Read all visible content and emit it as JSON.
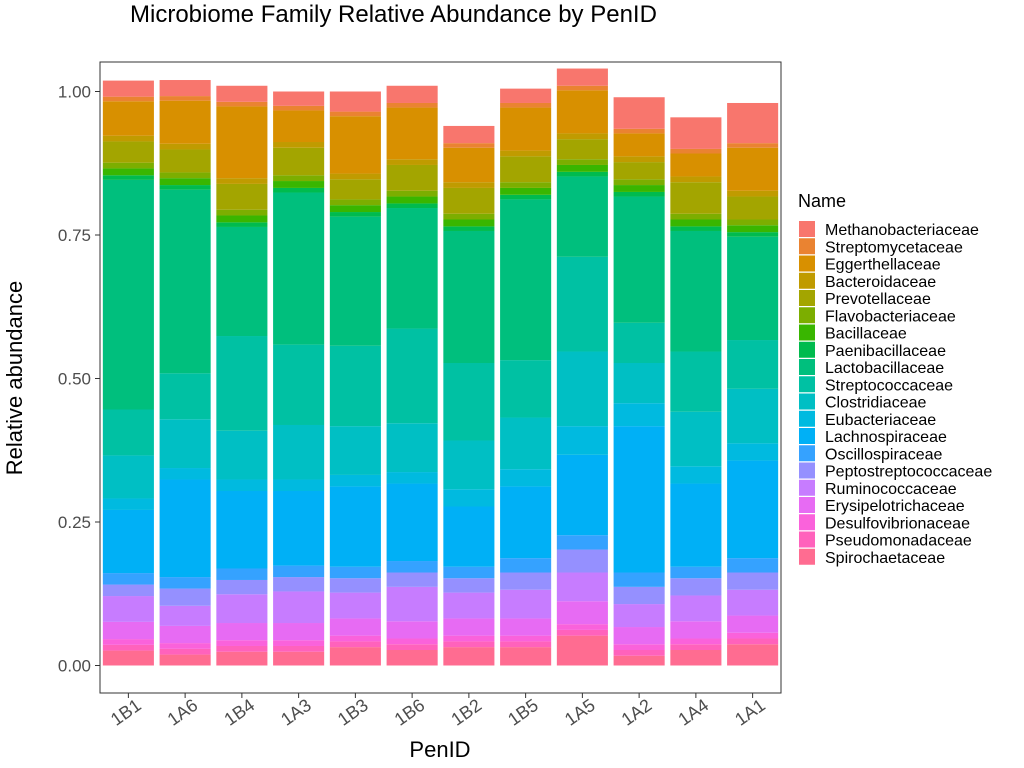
{
  "chart_data": {
    "type": "bar",
    "stacked": true,
    "normalized": true,
    "title": "Microbiome Family Relative Abundance by PenID",
    "xlabel": "PenID",
    "ylabel": "Relative abundance",
    "ylim": [
      0,
      1
    ],
    "yticks": [
      "0.00",
      "0.25",
      "0.50",
      "0.75",
      "1.00"
    ],
    "grid": false,
    "legend_position": "right",
    "legend_title": "Name",
    "categories": [
      "1B1",
      "1A6",
      "1B4",
      "1A3",
      "1B3",
      "1B6",
      "1B2",
      "1B5",
      "1A5",
      "1A2",
      "1A4",
      "1A1"
    ],
    "series": [
      {
        "name": "Methanobacteriaceae",
        "color": "#F8766D",
        "values": [
          0.028,
          0.028,
          0.028,
          0.025,
          0.035,
          0.03,
          0.03,
          0.025,
          0.03,
          0.055,
          0.055,
          0.07
        ]
      },
      {
        "name": "Streptomycetaceae",
        "color": "#EA8331",
        "values": [
          0.008,
          0.008,
          0.008,
          0.008,
          0.008,
          0.008,
          0.008,
          0.008,
          0.008,
          0.008,
          0.008,
          0.008
        ]
      },
      {
        "name": "Eggerthellaceae",
        "color": "#D89000",
        "values": [
          0.06,
          0.075,
          0.125,
          0.055,
          0.1,
          0.09,
          0.06,
          0.075,
          0.075,
          0.04,
          0.04,
          0.075
        ]
      },
      {
        "name": "Bacteroidaceae",
        "color": "#C09B00",
        "values": [
          0.01,
          0.01,
          0.01,
          0.01,
          0.01,
          0.01,
          0.01,
          0.01,
          0.01,
          0.01,
          0.01,
          0.01
        ]
      },
      {
        "name": "Prevotellaceae",
        "color": "#A3A500",
        "values": [
          0.037,
          0.04,
          0.045,
          0.048,
          0.035,
          0.045,
          0.045,
          0.045,
          0.035,
          0.03,
          0.055,
          0.04
        ]
      },
      {
        "name": "Flavobacteriaceae",
        "color": "#7CAE00",
        "values": [
          0.01,
          0.01,
          0.01,
          0.01,
          0.01,
          0.01,
          0.01,
          0.01,
          0.01,
          0.01,
          0.01,
          0.01
        ]
      },
      {
        "name": "Bacillaceae",
        "color": "#39B600",
        "values": [
          0.012,
          0.012,
          0.012,
          0.012,
          0.012,
          0.012,
          0.012,
          0.012,
          0.012,
          0.012,
          0.012,
          0.012
        ]
      },
      {
        "name": "Paenibacillaceae",
        "color": "#00BB4E",
        "values": [
          0.008,
          0.008,
          0.008,
          0.008,
          0.008,
          0.008,
          0.008,
          0.008,
          0.008,
          0.008,
          0.008,
          0.008
        ]
      },
      {
        "name": "Lactobacillaceae",
        "color": "#00BF7D",
        "values": [
          0.4,
          0.32,
          0.19,
          0.265,
          0.225,
          0.21,
          0.23,
          0.28,
          0.14,
          0.22,
          0.21,
          0.18
        ]
      },
      {
        "name": "Streptococcaceae",
        "color": "#00C1A3",
        "values": [
          0.08,
          0.08,
          0.165,
          0.14,
          0.14,
          0.165,
          0.135,
          0.1,
          0.165,
          0.07,
          0.105,
          0.085
        ]
      },
      {
        "name": "Clostridiaceae",
        "color": "#00BFC4",
        "values": [
          0.075,
          0.085,
          0.085,
          0.095,
          0.085,
          0.085,
          0.085,
          0.09,
          0.13,
          0.07,
          0.095,
          0.095
        ]
      },
      {
        "name": "Eubacteriaceae",
        "color": "#00BAE0",
        "values": [
          0.02,
          0.02,
          0.02,
          0.02,
          0.02,
          0.02,
          0.03,
          0.03,
          0.05,
          0.04,
          0.03,
          0.03
        ]
      },
      {
        "name": "Lachnospiraceae",
        "color": "#00B0F6",
        "values": [
          0.11,
          0.17,
          0.135,
          0.13,
          0.14,
          0.135,
          0.105,
          0.125,
          0.14,
          0.255,
          0.145,
          0.17
        ]
      },
      {
        "name": "Oscillospiraceae",
        "color": "#35A2FF",
        "values": [
          0.02,
          0.02,
          0.02,
          0.02,
          0.02,
          0.02,
          0.02,
          0.025,
          0.025,
          0.025,
          0.02,
          0.025
        ]
      },
      {
        "name": "Peptostreptococcaceae",
        "color": "#9590FF",
        "values": [
          0.02,
          0.03,
          0.025,
          0.025,
          0.025,
          0.025,
          0.025,
          0.03,
          0.04,
          0.03,
          0.03,
          0.03
        ]
      },
      {
        "name": "Ruminococcaceae",
        "color": "#C77CFF",
        "values": [
          0.045,
          0.035,
          0.05,
          0.055,
          0.045,
          0.06,
          0.045,
          0.05,
          0.05,
          0.04,
          0.045,
          0.045
        ]
      },
      {
        "name": "Erysipelotrichaceae",
        "color": "#E76BF3",
        "values": [
          0.03,
          0.03,
          0.03,
          0.03,
          0.03,
          0.03,
          0.03,
          0.03,
          0.04,
          0.03,
          0.03,
          0.03
        ]
      },
      {
        "name": "Desulfovibrionaceae",
        "color": "#FA62DB",
        "values": [
          0.01,
          0.01,
          0.01,
          0.01,
          0.01,
          0.01,
          0.01,
          0.01,
          0.01,
          0.01,
          0.01,
          0.01
        ]
      },
      {
        "name": "Pseudomonadaceae",
        "color": "#FF62BC",
        "values": [
          0.01,
          0.01,
          0.01,
          0.01,
          0.01,
          0.01,
          0.01,
          0.01,
          0.01,
          0.01,
          0.01,
          0.01
        ]
      },
      {
        "name": "Spirochaetaceae",
        "color": "#FF6C91",
        "values": [
          0.026,
          0.019,
          0.024,
          0.024,
          0.032,
          0.027,
          0.032,
          0.032,
          0.052,
          0.017,
          0.027,
          0.037
        ]
      }
    ]
  }
}
